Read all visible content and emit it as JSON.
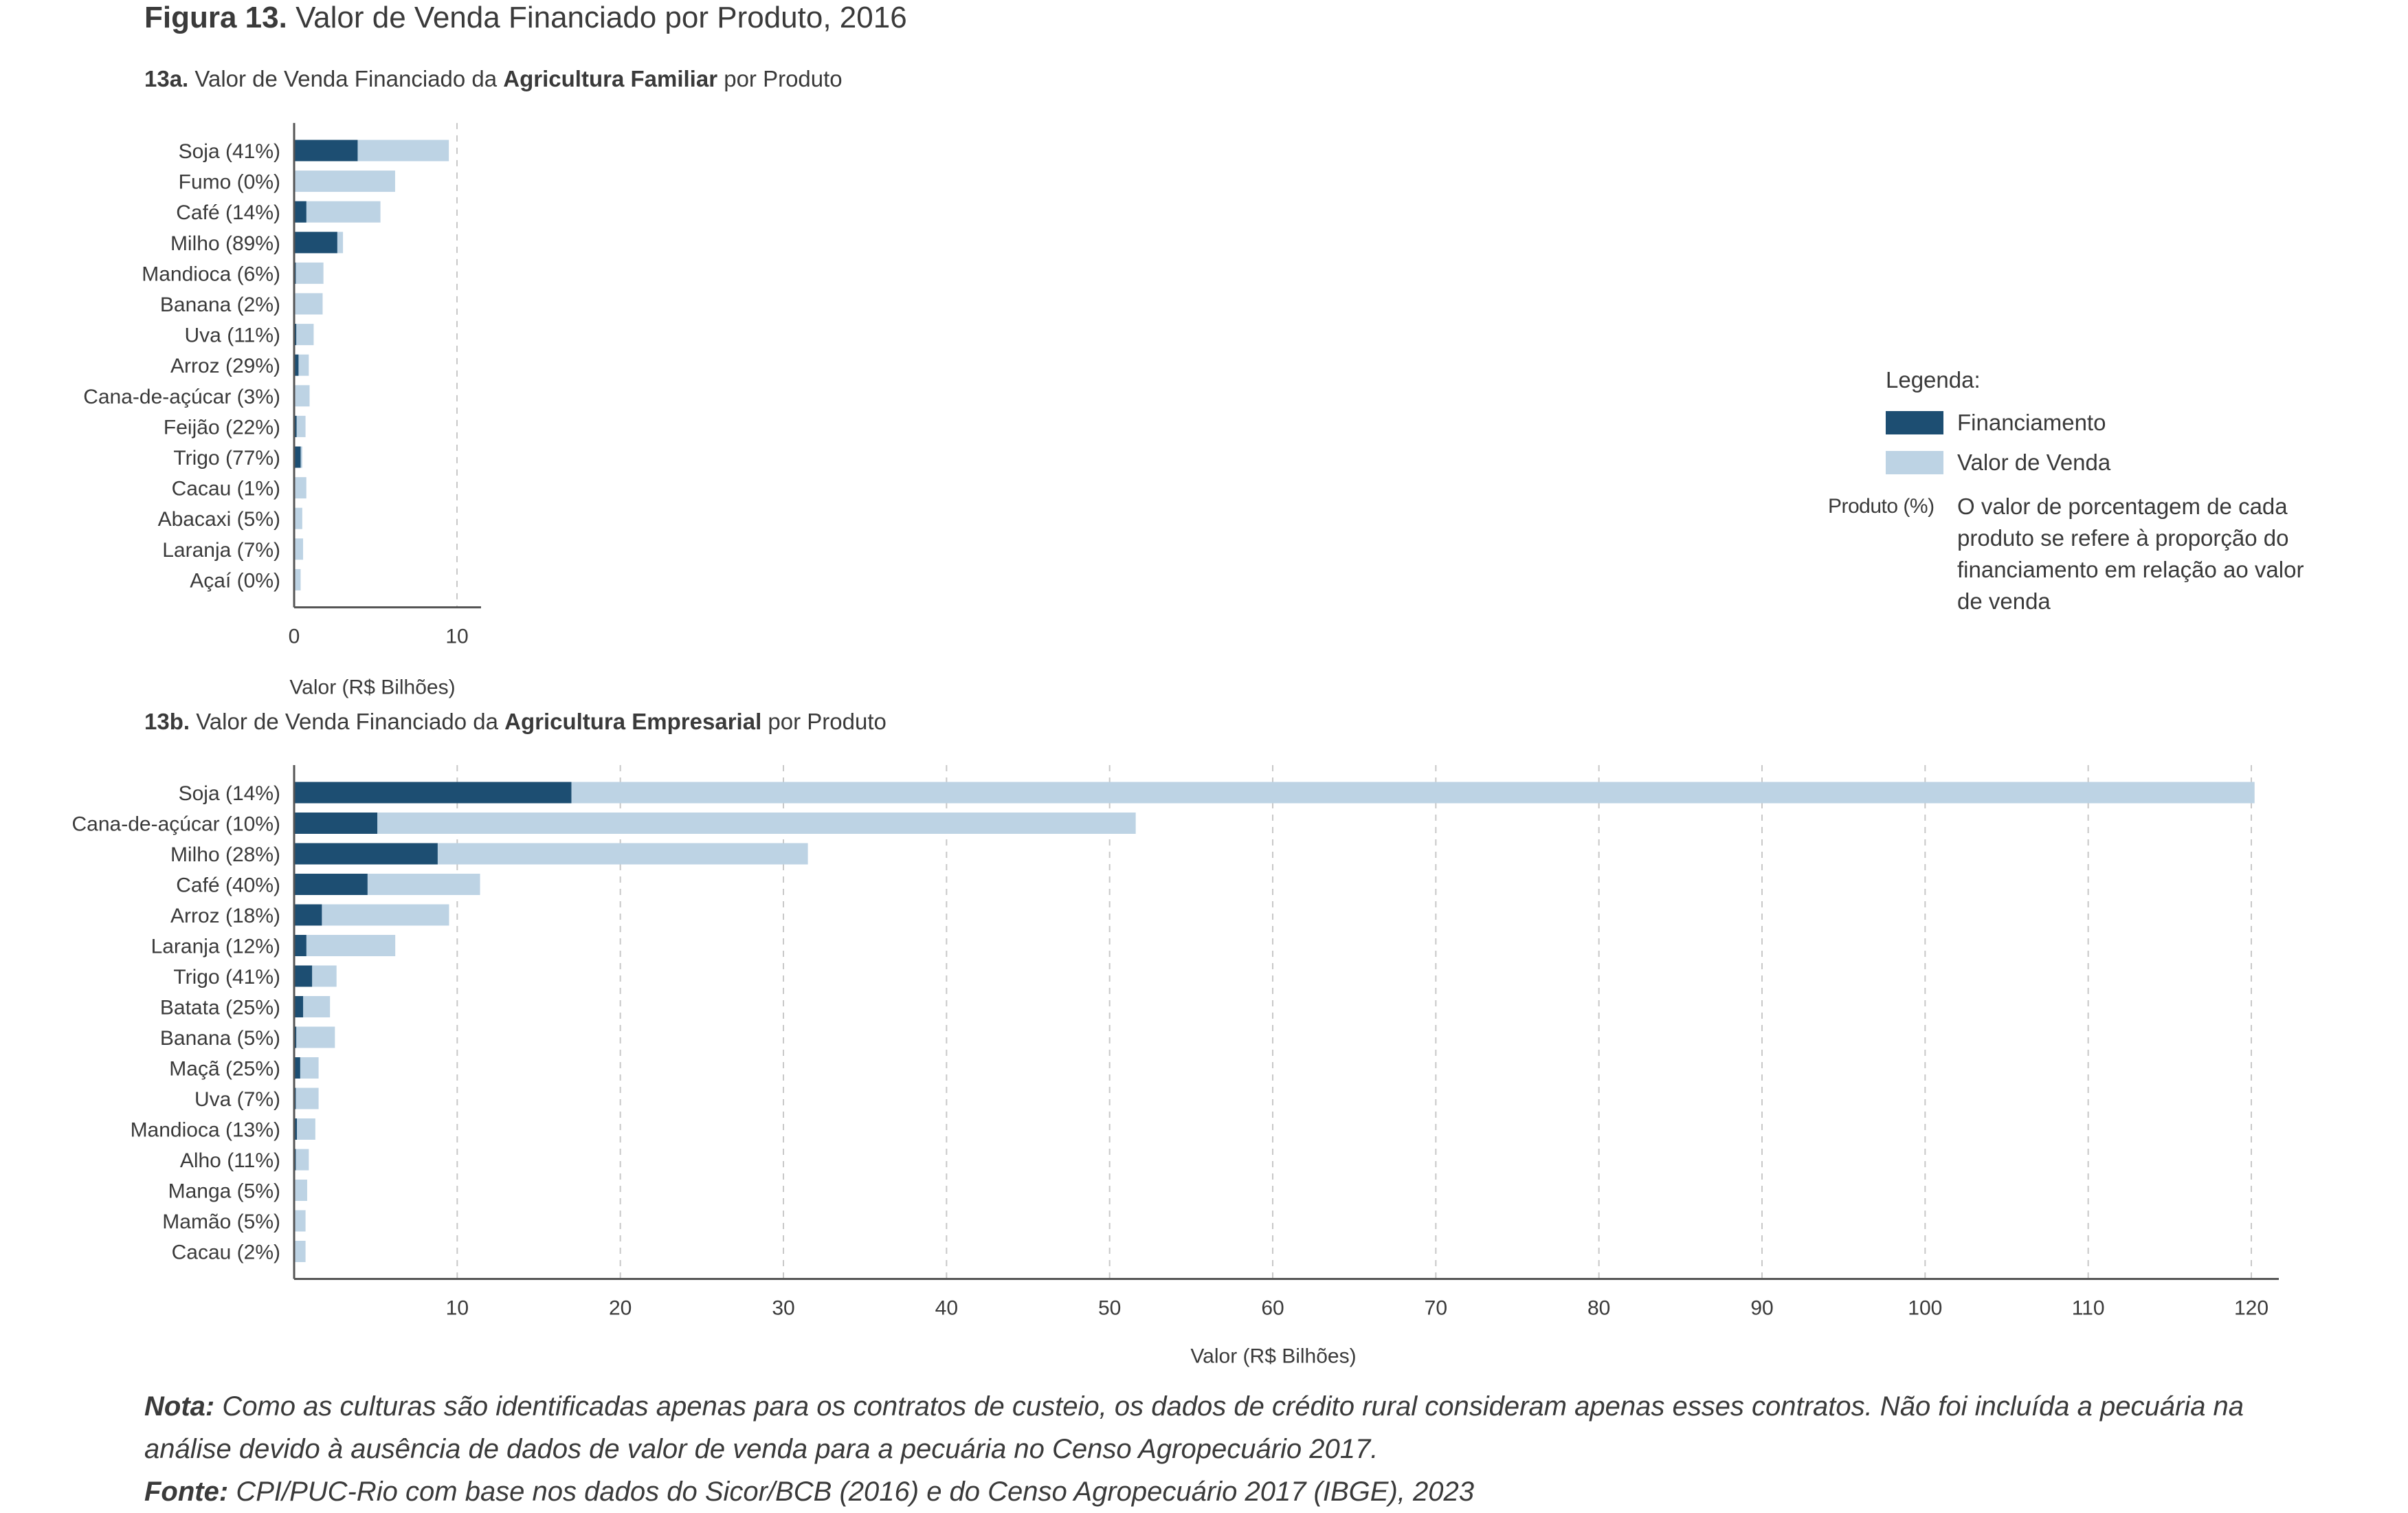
{
  "figure": {
    "label": "Figura 13.",
    "title": "Valor de Venda Financiado por Produto, 2016"
  },
  "colors": {
    "financiamento": "#1d4e72",
    "valor_venda": "#bdd3e4",
    "axis": "#555555",
    "grid": "#c8c8c8"
  },
  "chart_data": [
    {
      "id": "13a",
      "type": "bar",
      "orientation": "horizontal",
      "title_prefix": "13a.",
      "title_pre": "Valor de Venda Financiado da",
      "title_bold": "Agricultura Familiar",
      "title_post": "por Produto",
      "xlabel": "Valor (R$ Bilhões)",
      "ylabel": "",
      "xlim": [
        0,
        11.5
      ],
      "xticks": [
        0,
        10
      ],
      "grid": "vertical dashed",
      "categories": [
        "Soja (41%)",
        "Fumo (0%)",
        "Café (14%)",
        "Milho (89%)",
        "Mandioca (6%)",
        "Banana (2%)",
        "Uva (11%)",
        "Arroz (29%)",
        "Cana-de-açúcar (3%)",
        "Feijão (22%)",
        "Trigo (77%)",
        "Cacau (1%)",
        "Abacaxi (5%)",
        "Laranja (7%)",
        "Açaí (0%)"
      ],
      "series": [
        {
          "name": "Financiamento",
          "values": [
            3.9,
            0.0,
            0.75,
            2.65,
            0.1,
            0.03,
            0.13,
            0.27,
            0.03,
            0.15,
            0.4,
            0.01,
            0.03,
            0.04,
            0.0
          ]
        },
        {
          "name": "Valor de Venda",
          "values": [
            9.5,
            6.2,
            5.3,
            3.0,
            1.8,
            1.75,
            1.2,
            0.9,
            0.95,
            0.7,
            0.5,
            0.75,
            0.5,
            0.55,
            0.4
          ]
        }
      ]
    },
    {
      "id": "13b",
      "type": "bar",
      "orientation": "horizontal",
      "title_prefix": "13b.",
      "title_pre": "Valor de Venda Financiado da",
      "title_bold": "Agricultura Empresarial",
      "title_post": "por Produto",
      "xlabel": "Valor (R$ Bilhões)",
      "ylabel": "",
      "xlim": [
        0,
        121.5
      ],
      "xticks": [
        10,
        20,
        30,
        40,
        50,
        60,
        70,
        80,
        90,
        100,
        110,
        120
      ],
      "grid": "vertical dashed",
      "categories": [
        "Soja (14%)",
        "Cana-de-açúcar (10%)",
        "Milho (28%)",
        "Café (40%)",
        "Arroz (18%)",
        "Laranja (12%)",
        "Trigo (41%)",
        "Batata (25%)",
        "Banana (5%)",
        "Maçã (25%)",
        "Uva (7%)",
        "Mandioca (13%)",
        "Alho (11%)",
        "Manga (5%)",
        "Mamão (5%)",
        "Cacau (2%)"
      ],
      "series": [
        {
          "name": "Financiamento",
          "values": [
            17.0,
            5.1,
            8.8,
            4.5,
            1.7,
            0.75,
            1.1,
            0.55,
            0.13,
            0.37,
            0.1,
            0.17,
            0.1,
            0.04,
            0.03,
            0.01
          ]
        },
        {
          "name": "Valor de Venda",
          "values": [
            120.2,
            51.6,
            31.5,
            11.4,
            9.5,
            6.2,
            2.6,
            2.2,
            2.5,
            1.5,
            1.5,
            1.3,
            0.9,
            0.8,
            0.7,
            0.7
          ]
        }
      ]
    }
  ],
  "legend": {
    "title": "Legenda:",
    "items": [
      "Financiamento",
      "Valor de Venda"
    ],
    "produto_key": "Produto (%)",
    "produto_desc": "O valor de porcentagem de cada produto se refere à proporção do financiamento em relação ao valor de venda"
  },
  "notes": {
    "nota_label": "Nota:",
    "nota_text": "Como as culturas são identificadas apenas para os contratos de custeio, os dados de crédito rural consideram apenas esses contratos. Não foi incluída a pecuária na análise devido à ausência de dados de valor de venda para a pecuária no Censo Agropecuário 2017.",
    "fonte_label": "Fonte:",
    "fonte_text": "CPI/PUC-Rio com base nos dados do Sicor/BCB (2016) e do Censo Agropecuário 2017 (IBGE), 2023"
  }
}
